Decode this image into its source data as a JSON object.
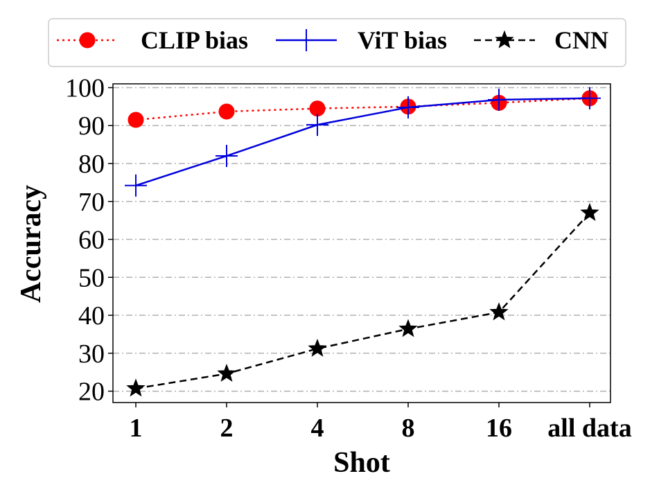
{
  "chart_data": {
    "type": "line",
    "categories": [
      "1",
      "2",
      "4",
      "8",
      "16",
      "all data"
    ],
    "xlabel": "Shot",
    "ylabel": "Accuracy",
    "ylim": [
      17,
      101
    ],
    "yticks": [
      20,
      30,
      40,
      50,
      60,
      70,
      80,
      90,
      100
    ],
    "grid": "horizontal dash-dot",
    "legend_position": "top",
    "series": [
      {
        "name": "CLIP bias",
        "values": [
          91.5,
          93.7,
          94.5,
          95.0,
          96.0,
          97.2
        ],
        "color": "#ff0000",
        "line_style": "dotted",
        "marker": "circle"
      },
      {
        "name": "ViT bias",
        "values": [
          74.2,
          82.0,
          90.2,
          94.8,
          96.8,
          97.2
        ],
        "color": "#0000dd",
        "line_style": "solid",
        "marker": "plus"
      },
      {
        "name": "CNN",
        "values": [
          20.7,
          24.6,
          31.2,
          36.4,
          40.8,
          67.0
        ],
        "color": "#000000",
        "line_style": "dashed",
        "marker": "star"
      }
    ]
  }
}
